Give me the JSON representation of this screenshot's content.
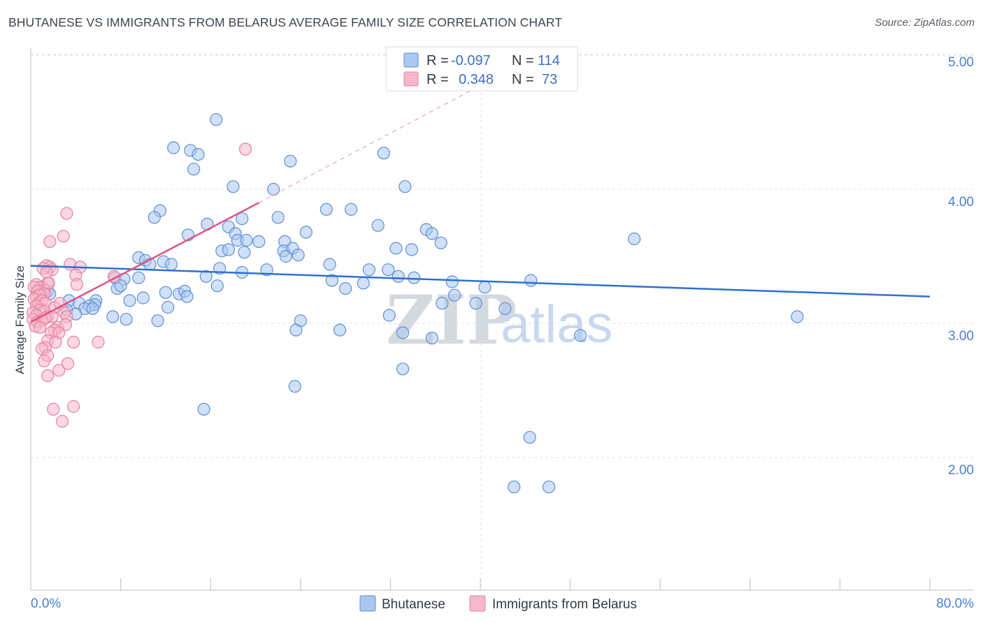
{
  "header": {
    "title": "BHUTANESE VS IMMIGRANTS FROM BELARUS AVERAGE FAMILY SIZE CORRELATION CHART",
    "source": "Source: ZipAtlas.com"
  },
  "watermark": {
    "zip": "ZIP",
    "atlas": "atlas"
  },
  "colors": {
    "blue_fill": "#a9c7ef",
    "blue_stroke": "#5d8fd6",
    "blue_line": "#2e6fd0",
    "pink_fill": "#f6b7cb",
    "pink_stroke": "#e8809f",
    "pink_line": "#e0517f",
    "grid": "#dde2e8",
    "axis_text": "#4a7fd0"
  },
  "legend": {
    "rows": [
      {
        "r_label": "R =",
        "r_value": "-0.097",
        "n_label": "N =",
        "n_value": "114"
      },
      {
        "r_label": "R =",
        "r_value": "0.348",
        "n_label": "N =",
        "n_value": "73"
      }
    ]
  },
  "chart_data": {
    "type": "scatter",
    "title": "BHUTANESE VS IMMIGRANTS FROM BELARUS AVERAGE FAMILY SIZE CORRELATION CHART",
    "xlabel": "",
    "ylabel": "Average Family Size",
    "xlim": [
      0,
      80
    ],
    "ylim": [
      1.0,
      5.15
    ],
    "x_tick_labels": [
      "0.0%",
      "80.0%"
    ],
    "y_ticks": [
      2.0,
      3.0,
      4.0,
      5.0
    ],
    "y_tick_labels": [
      "2.00",
      "3.00",
      "4.00",
      "5.00"
    ],
    "grid": true,
    "series": [
      {
        "name": "Bhutanese",
        "color": "blue",
        "r": -0.097,
        "n": 114,
        "trend": {
          "x0": 0.0,
          "y0": 3.43,
          "x1": 80.0,
          "y1": 3.2,
          "dashed_to": null
        },
        "points": [
          [
            16.5,
            4.52
          ],
          [
            12.7,
            4.31
          ],
          [
            14.2,
            4.29
          ],
          [
            14.9,
            4.26
          ],
          [
            23.1,
            4.21
          ],
          [
            31.4,
            4.27
          ],
          [
            14.5,
            4.15
          ],
          [
            18.0,
            4.02
          ],
          [
            21.6,
            4.0
          ],
          [
            33.3,
            4.02
          ],
          [
            11.5,
            3.84
          ],
          [
            11.0,
            3.79
          ],
          [
            26.3,
            3.85
          ],
          [
            28.5,
            3.85
          ],
          [
            18.8,
            3.78
          ],
          [
            22.0,
            3.79
          ],
          [
            30.9,
            3.73
          ],
          [
            14.0,
            3.66
          ],
          [
            15.7,
            3.74
          ],
          [
            17.6,
            3.72
          ],
          [
            18.2,
            3.67
          ],
          [
            18.4,
            3.62
          ],
          [
            19.2,
            3.62
          ],
          [
            19.0,
            3.53
          ],
          [
            20.3,
            3.61
          ],
          [
            22.6,
            3.61
          ],
          [
            24.5,
            3.68
          ],
          [
            22.5,
            3.54
          ],
          [
            23.3,
            3.56
          ],
          [
            17.0,
            3.54
          ],
          [
            17.6,
            3.55
          ],
          [
            16.8,
            3.41
          ],
          [
            21.0,
            3.4
          ],
          [
            18.8,
            3.38
          ],
          [
            22.7,
            3.5
          ],
          [
            23.8,
            3.51
          ],
          [
            9.6,
            3.49
          ],
          [
            10.2,
            3.47
          ],
          [
            10.6,
            3.44
          ],
          [
            11.8,
            3.46
          ],
          [
            12.5,
            3.44
          ],
          [
            7.5,
            3.34
          ],
          [
            8.3,
            3.33
          ],
          [
            9.6,
            3.34
          ],
          [
            26.6,
            3.44
          ],
          [
            30.1,
            3.4
          ],
          [
            31.8,
            3.4
          ],
          [
            32.5,
            3.56
          ],
          [
            33.9,
            3.55
          ],
          [
            35.2,
            3.7
          ],
          [
            35.7,
            3.67
          ],
          [
            32.7,
            3.35
          ],
          [
            34.1,
            3.34
          ],
          [
            36.5,
            3.6
          ],
          [
            37.5,
            3.31
          ],
          [
            37.7,
            3.21
          ],
          [
            39.6,
            3.15
          ],
          [
            40.4,
            3.27
          ],
          [
            7.7,
            3.26
          ],
          [
            8.0,
            3.28
          ],
          [
            15.6,
            3.35
          ],
          [
            16.6,
            3.28
          ],
          [
            26.8,
            3.32
          ],
          [
            29.6,
            3.3
          ],
          [
            28.0,
            3.26
          ],
          [
            12.0,
            3.23
          ],
          [
            13.2,
            3.22
          ],
          [
            13.7,
            3.24
          ],
          [
            13.9,
            3.2
          ],
          [
            10.0,
            3.19
          ],
          [
            8.8,
            3.17
          ],
          [
            5.8,
            3.17
          ],
          [
            5.7,
            3.14
          ],
          [
            3.4,
            3.17
          ],
          [
            4.3,
            3.15
          ],
          [
            5.2,
            3.13
          ],
          [
            4.8,
            3.11
          ],
          [
            5.5,
            3.11
          ],
          [
            7.3,
            3.05
          ],
          [
            8.5,
            3.03
          ],
          [
            12.2,
            3.12
          ],
          [
            1.0,
            3.27
          ],
          [
            1.5,
            3.24
          ],
          [
            1.7,
            3.22
          ],
          [
            3.2,
            3.1
          ],
          [
            4.0,
            3.07
          ],
          [
            11.3,
            3.02
          ],
          [
            24.0,
            3.02
          ],
          [
            23.6,
            2.95
          ],
          [
            27.5,
            2.95
          ],
          [
            31.9,
            3.06
          ],
          [
            33.1,
            2.93
          ],
          [
            35.7,
            2.89
          ],
          [
            36.6,
            3.15
          ],
          [
            42.2,
            3.11
          ],
          [
            44.5,
            3.32
          ],
          [
            53.7,
            3.63
          ],
          [
            68.2,
            3.05
          ],
          [
            48.9,
            2.91
          ],
          [
            23.5,
            2.53
          ],
          [
            33.1,
            2.66
          ],
          [
            15.4,
            2.36
          ],
          [
            44.4,
            2.15
          ],
          [
            43.0,
            1.78
          ],
          [
            46.1,
            1.78
          ]
        ]
      },
      {
        "name": "Immigrants from Belarus",
        "color": "pink",
        "r": 0.348,
        "n": 73,
        "trend": {
          "x0": 0.0,
          "y0": 3.01,
          "x1": 20.3,
          "y1": 3.9,
          "dashed_to": [
            44.0,
            4.95
          ]
        },
        "points": [
          [
            19.1,
            4.3
          ],
          [
            3.2,
            3.82
          ],
          [
            2.9,
            3.65
          ],
          [
            1.7,
            3.61
          ],
          [
            3.5,
            3.44
          ],
          [
            4.4,
            3.42
          ],
          [
            1.4,
            3.43
          ],
          [
            1.7,
            3.42
          ],
          [
            1.9,
            3.4
          ],
          [
            1.1,
            3.41
          ],
          [
            1.4,
            3.38
          ],
          [
            4.0,
            3.36
          ],
          [
            7.4,
            3.35
          ],
          [
            1.5,
            3.3
          ],
          [
            4.1,
            3.29
          ],
          [
            0.5,
            3.29
          ],
          [
            0.8,
            3.27
          ],
          [
            1.2,
            3.25
          ],
          [
            1.6,
            3.3
          ],
          [
            0.3,
            3.27
          ],
          [
            0.6,
            3.24
          ],
          [
            1.2,
            3.22
          ],
          [
            0.5,
            3.2
          ],
          [
            0.8,
            3.21
          ],
          [
            0.3,
            3.18
          ],
          [
            0.7,
            3.15
          ],
          [
            1.0,
            3.17
          ],
          [
            1.3,
            3.15
          ],
          [
            0.5,
            3.13
          ],
          [
            2.1,
            3.12
          ],
          [
            2.6,
            3.15
          ],
          [
            0.8,
            3.1
          ],
          [
            1.2,
            3.09
          ],
          [
            0.2,
            3.08
          ],
          [
            0.5,
            3.06
          ],
          [
            1.5,
            3.05
          ],
          [
            1.9,
            3.05
          ],
          [
            3.0,
            3.08
          ],
          [
            3.2,
            3.05
          ],
          [
            0.2,
            3.03
          ],
          [
            0.6,
            3.01
          ],
          [
            1.0,
            3.02
          ],
          [
            1.3,
            3.04
          ],
          [
            0.4,
            2.98
          ],
          [
            0.8,
            2.97
          ],
          [
            2.4,
            2.97
          ],
          [
            3.1,
            2.99
          ],
          [
            2.1,
            2.95
          ],
          [
            1.8,
            2.93
          ],
          [
            2.5,
            2.93
          ],
          [
            1.5,
            2.87
          ],
          [
            2.2,
            2.86
          ],
          [
            3.8,
            2.86
          ],
          [
            6.0,
            2.86
          ],
          [
            1.3,
            2.82
          ],
          [
            1.0,
            2.81
          ],
          [
            1.5,
            2.76
          ],
          [
            1.2,
            2.72
          ],
          [
            3.3,
            2.7
          ],
          [
            2.5,
            2.65
          ],
          [
            1.5,
            2.61
          ],
          [
            2.0,
            2.36
          ],
          [
            3.8,
            2.38
          ],
          [
            2.8,
            2.27
          ]
        ]
      }
    ]
  },
  "bottom_legend": {
    "items": [
      {
        "label": "Bhutanese"
      },
      {
        "label": "Immigrants from Belarus"
      }
    ]
  }
}
